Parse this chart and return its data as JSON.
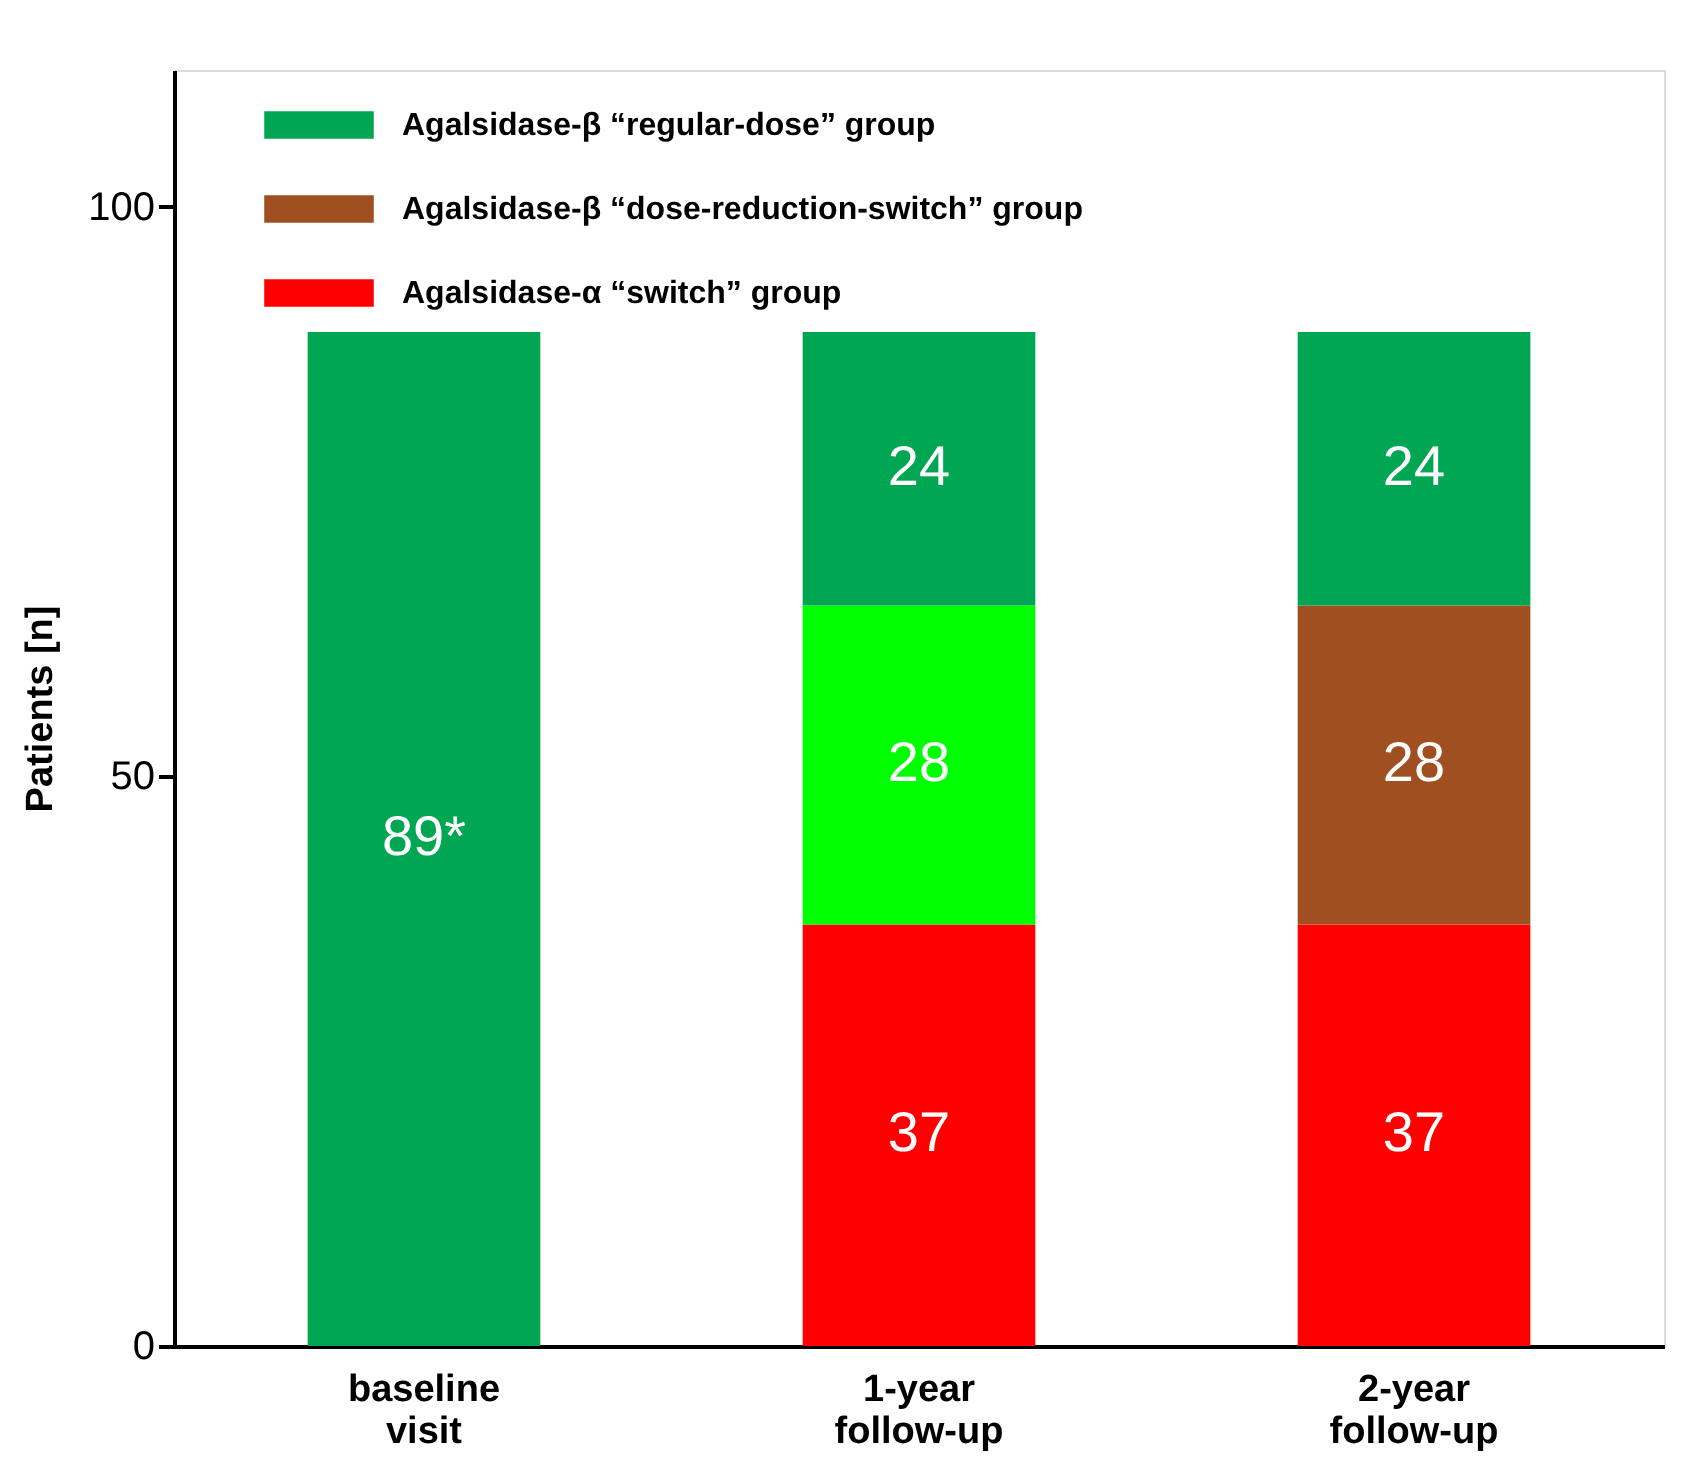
{
  "chart_data": {
    "type": "bar",
    "stacked": true,
    "ylabel": "Patients [n]",
    "categories": [
      "baseline visit",
      "1-year follow-up",
      "2-year follow-up"
    ],
    "series": [
      {
        "name": "Agalsidase-α “switch” group",
        "color": "#ff0000",
        "values": [
          null,
          37,
          37
        ],
        "value_labels": [
          null,
          "37",
          "37"
        ]
      },
      {
        "name": "Agalsidase-β “dose-reduction-switch” group",
        "color": "#a05020",
        "colors": [
          null,
          "#00ff00",
          "#a05020"
        ],
        "values": [
          null,
          28,
          28
        ],
        "value_labels": [
          null,
          "28",
          "28"
        ]
      },
      {
        "name": "Agalsidase-β “regular-dose” group",
        "color": "#00a651",
        "values": [
          89,
          24,
          24
        ],
        "value_labels": [
          "89*",
          "24",
          "24"
        ]
      }
    ],
    "ylim": [
      0,
      112
    ],
    "yticks": [
      0,
      50,
      100
    ],
    "grid": false,
    "legend": "top"
  }
}
